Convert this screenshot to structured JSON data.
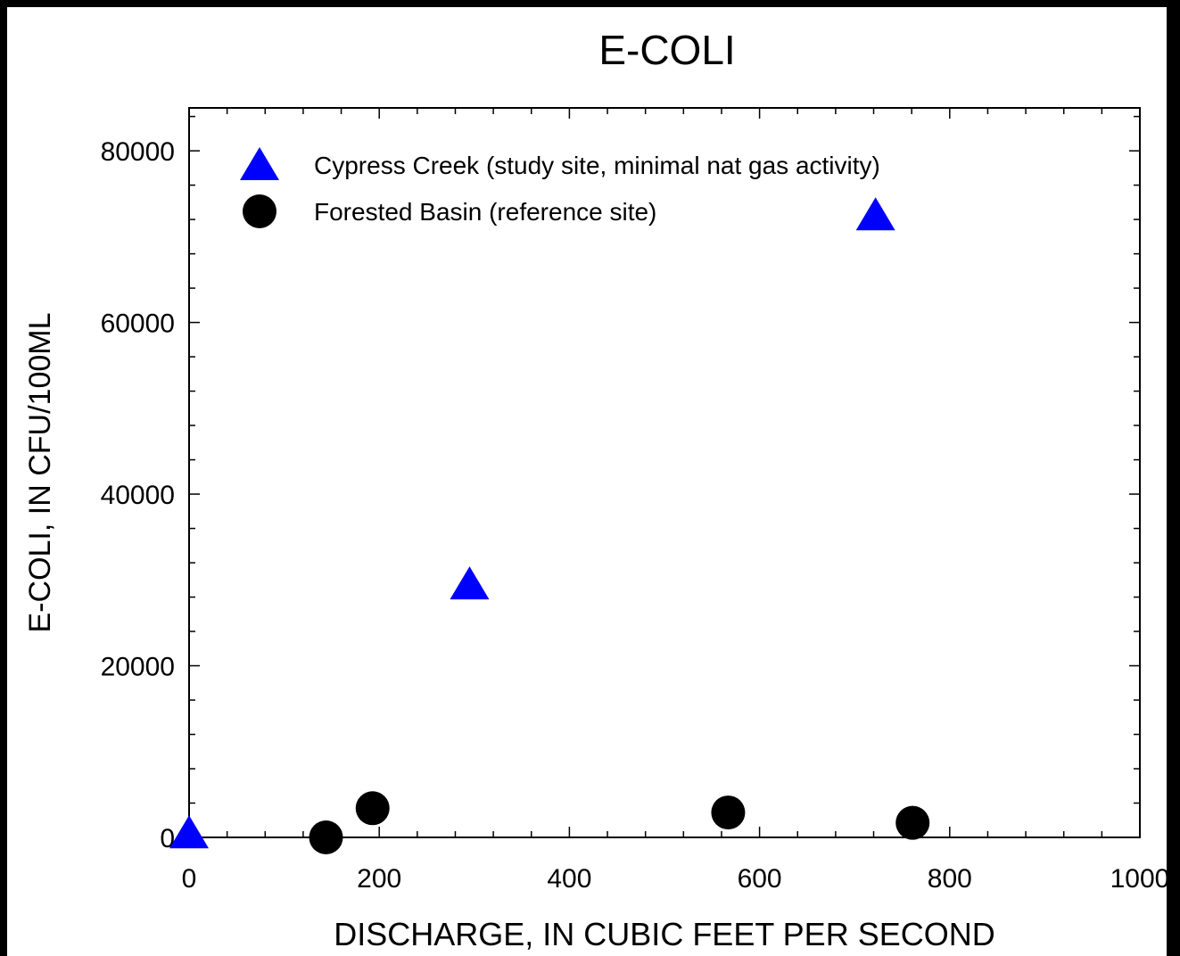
{
  "chart_data": {
    "type": "scatter",
    "title": "E-COLI",
    "x_label": "DISCHARGE, IN CUBIC FEET PER SECOND",
    "y_label": "E-COLI, IN CFU/100ML",
    "series": [
      {
        "name": "Cypress Creek (study site, minimal nat gas activity)",
        "color": "#0000ff",
        "marker": "triangle",
        "x": [
          0,
          295,
          722
        ],
        "values": [
          500,
          29500,
          72500
        ]
      },
      {
        "name": "Forested Basin (reference site)",
        "color": "#000000",
        "marker": "circle",
        "x": [
          144,
          193,
          567,
          761
        ],
        "values": [
          0,
          3400,
          2900,
          1700
        ]
      }
    ],
    "xlim": [
      0,
      1000
    ],
    "xticks": [
      0,
      200,
      400,
      600,
      800,
      1000
    ],
    "xminorticks": [
      40,
      80,
      120,
      160,
      240,
      280,
      320,
      360,
      440,
      480,
      520,
      560,
      640,
      680,
      720,
      760,
      840,
      880,
      920,
      960
    ],
    "ylim": [
      0,
      85000
    ],
    "yticks": [
      0,
      20000,
      40000,
      60000,
      80000
    ],
    "yminorticks": [
      4000,
      8000,
      12000,
      16000,
      24000,
      28000,
      32000,
      36000,
      44000,
      48000,
      52000,
      56000,
      64000,
      68000,
      72000,
      76000,
      84000
    ],
    "legend": "upper left"
  }
}
